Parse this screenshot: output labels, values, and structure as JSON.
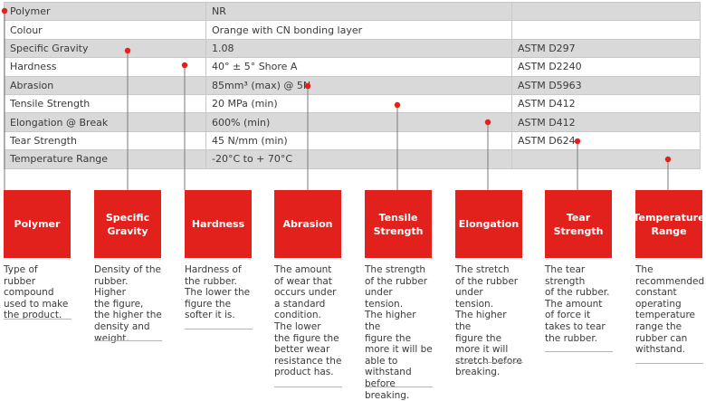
{
  "table": {
    "rows": [
      {
        "property": "Polymer",
        "value": "NR",
        "standard": ""
      },
      {
        "property": "Colour",
        "value": "Orange with CN bonding layer",
        "standard": ""
      },
      {
        "property": "Specific Gravity",
        "value": "1.08",
        "standard": "ASTM D297"
      },
      {
        "property": "Hardness",
        "value": "40° ± 5° Shore A",
        "standard": "ASTM D2240"
      },
      {
        "property": "Abrasion",
        "value": "85mm³ (max) @ 5N",
        "standard": "ASTM D5963"
      },
      {
        "property": "Tensile Strength",
        "value": "20 MPa (min)",
        "standard": "ASTM D412"
      },
      {
        "property": "Elongation @ Break",
        "value": "600% (min)",
        "standard": "ASTM D412"
      },
      {
        "property": "Tear Strength",
        "value": "45 N/mm (min)",
        "standard": "ASTM D624"
      },
      {
        "property": "Temperature Range",
        "value": "-20°C to + 70°C",
        "standard": ""
      }
    ]
  },
  "cards": [
    {
      "title": "Polymer",
      "description": "Type of rubber\ncompound\nused to make\nthe product."
    },
    {
      "title": "Specific\nGravity",
      "description": "Density of the\nrubber. Higher\nthe figure,\nthe higher the\ndensity and\nweight."
    },
    {
      "title": "Hardness",
      "description": "Hardness of\nthe rubber.\nThe lower the\nfigure the\nsofter it is."
    },
    {
      "title": "Abrasion",
      "description": "The amount\nof wear that\noccurs under\na standard\ncondition.\nThe lower\nthe figure the\nbetter wear\nresistance the\nproduct has."
    },
    {
      "title": "Tensile\nStrength",
      "description": "The strength\nof the rubber\nunder tension.\nThe higher the\nfigure the\nmore it will be\nable to\nwithstand\nbefore\nbreaking."
    },
    {
      "title": "Elongation",
      "description": "The stretch\nof the rubber\nunder tension.\nThe higher the\nfigure the\nmore it will\nstretch before\nbreaking."
    },
    {
      "title": "Tear\nStrength",
      "description": "The tear\nstrength\nof the rubber.\nThe amount\nof force it\ntakes to tear\nthe rubber."
    },
    {
      "title": "Temperature\nRange",
      "description": "The\nrecommended\nconstant\noperating\ntemperature\nrange the\nrubber can\nwithstand."
    }
  ],
  "colors": {
    "accent": "#e2211c",
    "row_shade": "#d9d9d9",
    "border": "#c8c8c8"
  }
}
